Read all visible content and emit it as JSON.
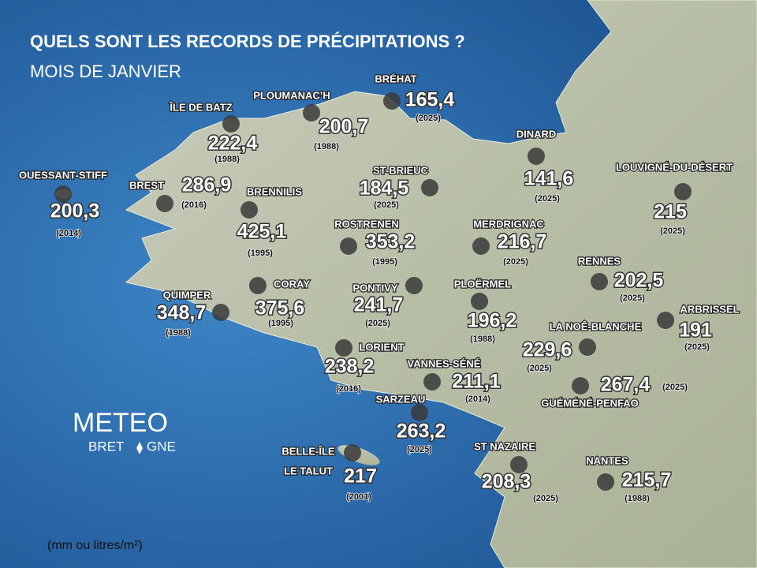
{
  "header": {
    "title": "QUELS SONT LES RECORDS DE PRÉCIPITATIONS ?",
    "subtitle": "MOIS DE JANVIER"
  },
  "unit_note": "(mm ou litres/m²)",
  "logo": {
    "line1": "METEO",
    "line2a": "BRET",
    "line2b": "GNE"
  },
  "stations": [
    {
      "name": "ÎLE DE BATZ",
      "value": "222,4",
      "year": "(1988)"
    },
    {
      "name": "PLOUMANAC’H",
      "value": "200,7",
      "year": "(1988)"
    },
    {
      "name": "BRÉHAT",
      "value": "165,4",
      "year": "(2025)"
    },
    {
      "name": "OUESSANT-STIFF",
      "value": "200,3",
      "year": "(2014)"
    },
    {
      "name": "BREST",
      "value": "286,9",
      "year": "(2016)"
    },
    {
      "name": "BRENNILIS",
      "value": "425,1",
      "year": "(1995)"
    },
    {
      "name": "ST-BRIEUC",
      "value": "184,5",
      "year": "(2025)"
    },
    {
      "name": "DINARD",
      "value": "141,6",
      "year": "(2025)"
    },
    {
      "name": "LOUVIGNÉ-DU-DÉSERT",
      "value": "215",
      "year": "(2025)"
    },
    {
      "name": "ROSTRENEN",
      "value": "353,2",
      "year": "(1995)"
    },
    {
      "name": "MERDRIGNAC",
      "value": "216,7",
      "year": "(2025)"
    },
    {
      "name": "RENNES",
      "value": "202,5",
      "year": "(2025)"
    },
    {
      "name": "CORAY",
      "value": "375,6",
      "year": "(1995)"
    },
    {
      "name": "QUIMPER",
      "value": "348,7",
      "year": "(1988)"
    },
    {
      "name": "PONTIVY",
      "value": "241,7",
      "year": "(2025)"
    },
    {
      "name": "PLOËRMEL",
      "value": "196,2",
      "year": "(1988)"
    },
    {
      "name": "ARBRISSEL",
      "value": "191",
      "year": "(2025)"
    },
    {
      "name": "LA NOÊ-BLANCHE",
      "value": "229,6",
      "year": "(2025)"
    },
    {
      "name": "LORIENT",
      "value": "238,2",
      "year": "(2016)"
    },
    {
      "name": "VANNES-SÉNÉ",
      "value": "211,1",
      "year": "(2014)"
    },
    {
      "name": "GUÉMÉNÉ-PENFAO",
      "value": "267,4",
      "year": "(2025)"
    },
    {
      "name": "SARZEAU",
      "value": "263,2",
      "year": "(2025)"
    },
    {
      "name": "BELLE-ÎLE",
      "subname": "LE TALUT",
      "value": "217",
      "year": "(2001)"
    },
    {
      "name": "ST NAZAIRE",
      "value": "208,3",
      "year": "(2025)"
    },
    {
      "name": "NANTES",
      "value": "215,7",
      "year": "(1988)"
    }
  ]
}
